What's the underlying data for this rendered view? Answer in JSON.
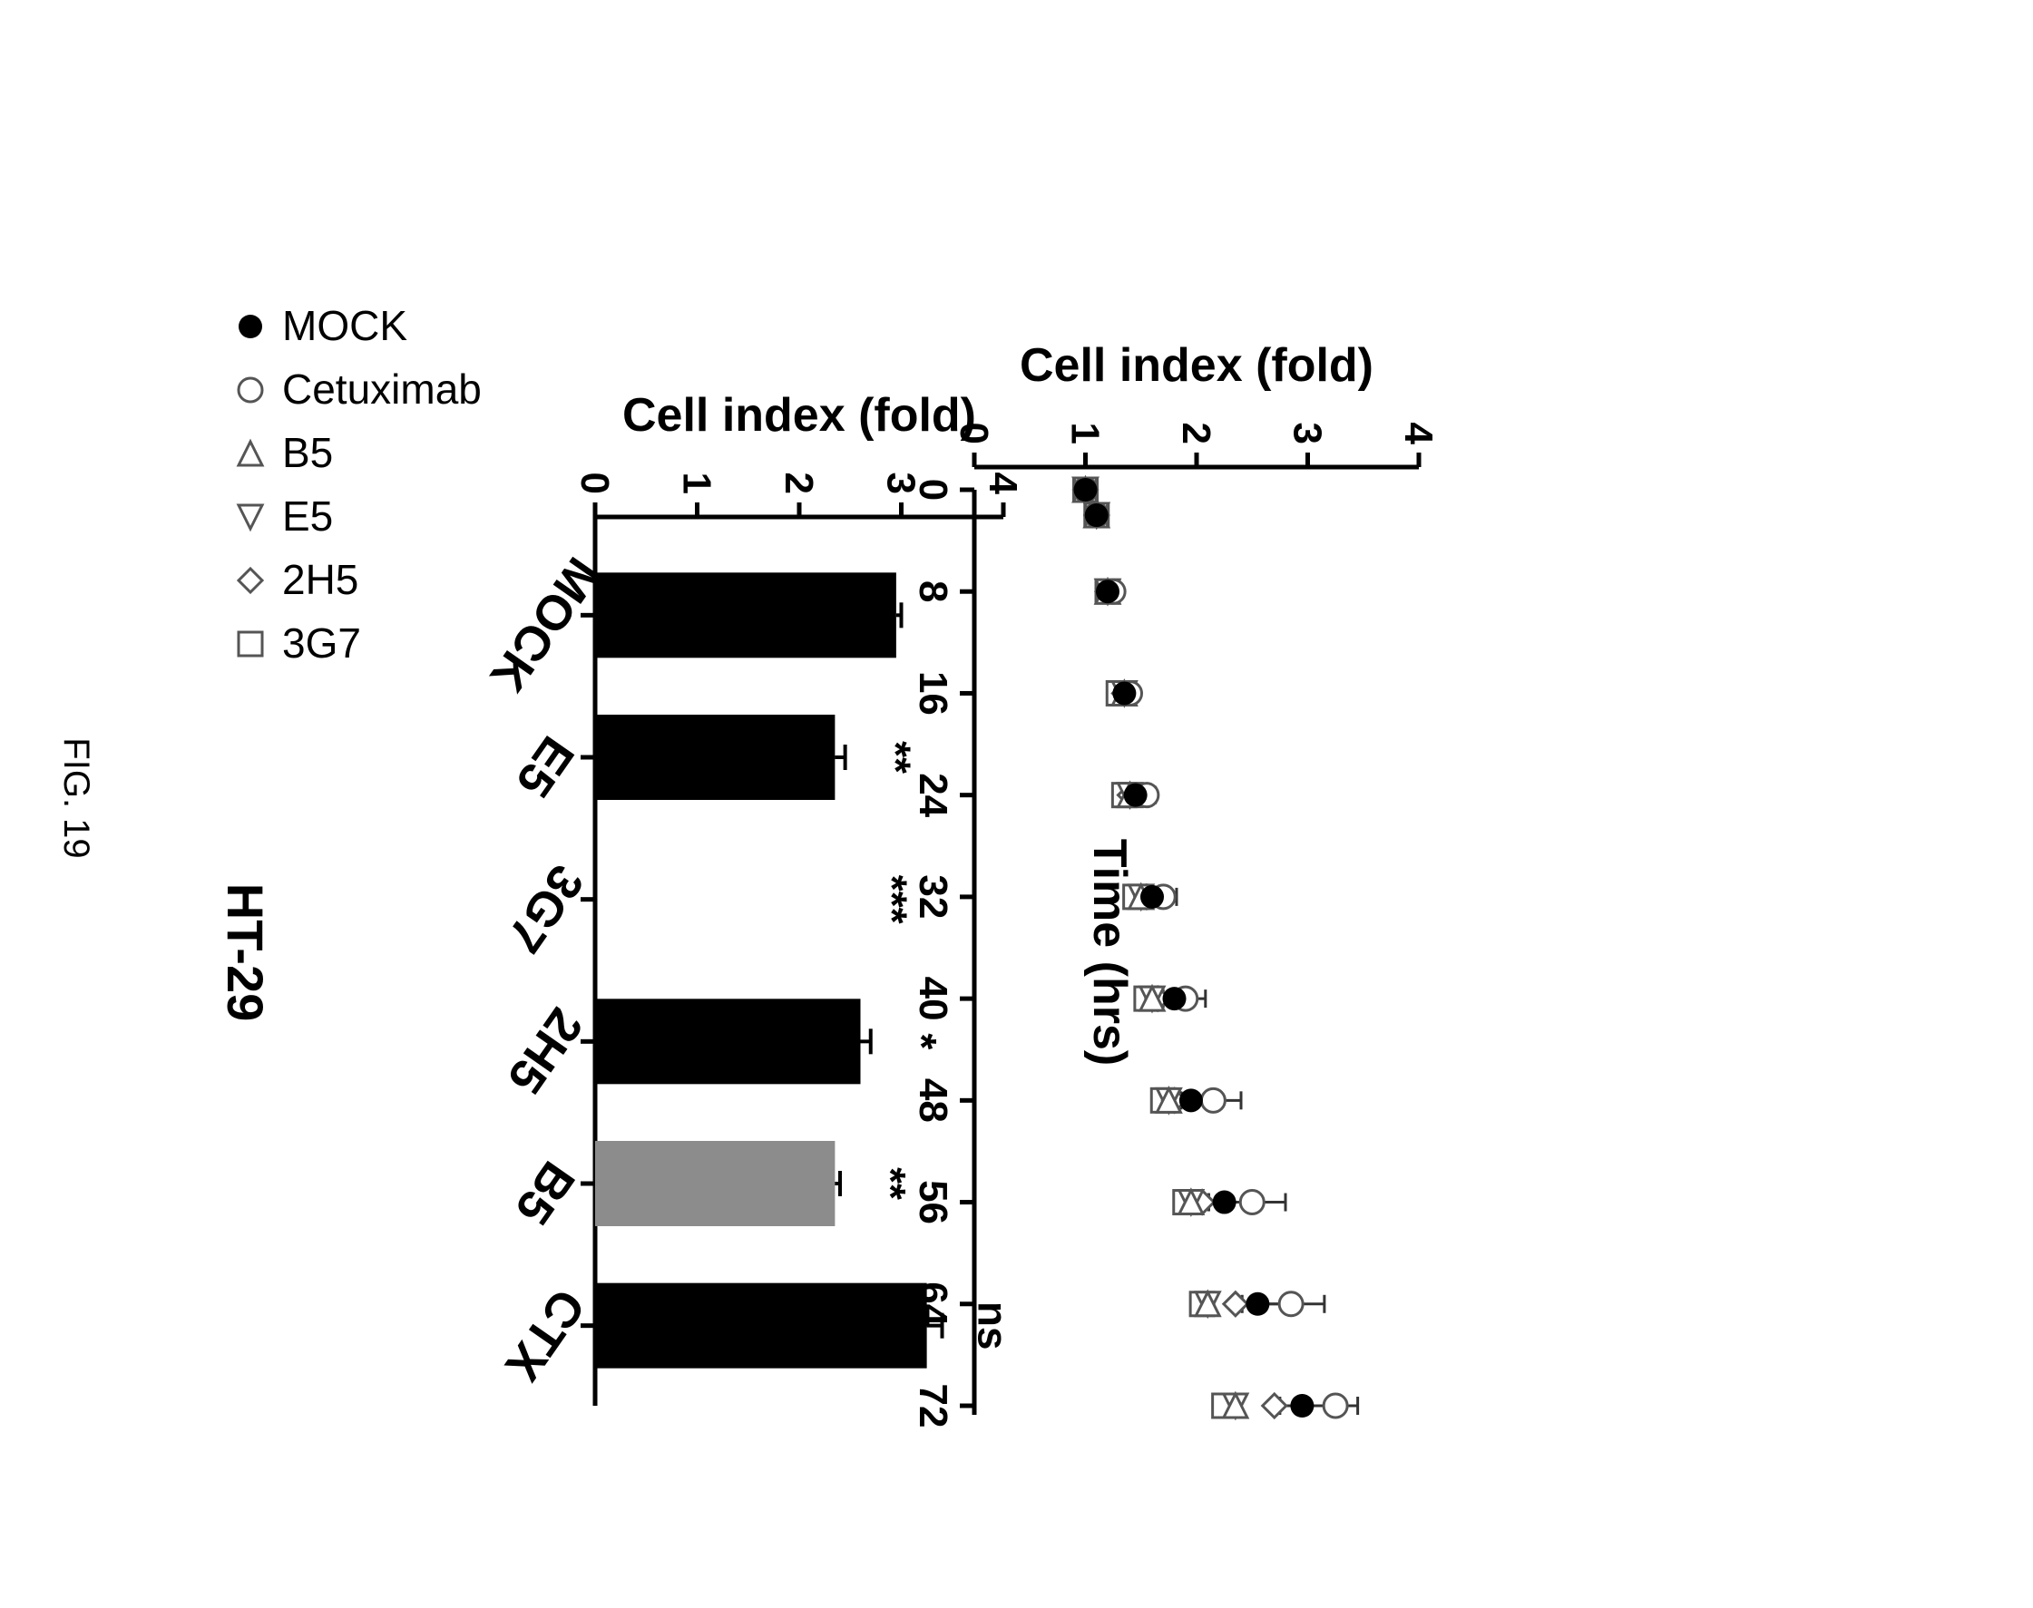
{
  "figure_label": "FIG. 19",
  "chart_data": [
    {
      "type": "scatter",
      "title": "HT-29",
      "xlabel": "Time (hrs)",
      "ylabel": "Cell index (fold)",
      "xlim": [
        0,
        72
      ],
      "ylim": [
        0,
        4
      ],
      "xticks": [
        "0",
        "8",
        "16",
        "24",
        "32",
        "40",
        "48",
        "56",
        "64",
        "72"
      ],
      "yticks": [
        "0",
        "1",
        "2",
        "3",
        "4"
      ],
      "grid": false,
      "legend_position": "right",
      "x": [
        0,
        2,
        8,
        16,
        24,
        32,
        40,
        48,
        56,
        64,
        72
      ],
      "series": [
        {
          "name": "MOCK",
          "marker": "filled-circle",
          "values": [
            1.0,
            1.1,
            1.2,
            1.35,
            1.45,
            1.6,
            1.8,
            1.95,
            2.25,
            2.55,
            2.95
          ],
          "error": [
            0,
            0,
            0.03,
            0.04,
            0.05,
            0.08,
            0.12,
            0.15,
            0.2,
            0.25,
            0.3
          ]
        },
        {
          "name": "Cetuximab",
          "marker": "open-circle",
          "values": [
            1.0,
            1.1,
            1.25,
            1.4,
            1.55,
            1.7,
            1.9,
            2.15,
            2.5,
            2.85,
            3.25
          ],
          "error": [
            0,
            0,
            0.03,
            0.05,
            0.08,
            0.12,
            0.18,
            0.25,
            0.3,
            0.3,
            0.2
          ]
        },
        {
          "name": "B5",
          "marker": "triangle-left",
          "values": [
            1.0,
            1.1,
            1.2,
            1.35,
            1.4,
            1.5,
            1.6,
            1.75,
            1.95,
            2.1,
            2.35
          ],
          "error": [
            0,
            0,
            0,
            0.03,
            0.03,
            0.04,
            0.05,
            0.06,
            0.06,
            0.05,
            0.05
          ]
        },
        {
          "name": "E5",
          "marker": "triangle-right",
          "values": [
            1.0,
            1.1,
            1.2,
            1.35,
            1.4,
            1.5,
            1.6,
            1.75,
            1.95,
            2.1,
            2.35
          ],
          "error": [
            0,
            0,
            0,
            0.03,
            0.03,
            0.04,
            0.05,
            0.06,
            0.06,
            0.05,
            0.05
          ]
        },
        {
          "name": "2H5",
          "marker": "open-diamond",
          "values": [
            1.0,
            1.1,
            1.2,
            1.35,
            1.4,
            1.55,
            1.65,
            1.8,
            2.05,
            2.35,
            2.7
          ],
          "error": [
            0,
            0,
            0,
            0.03,
            0.03,
            0.04,
            0.05,
            0.06,
            0.06,
            0.06,
            0.05
          ]
        },
        {
          "name": "3G7",
          "marker": "open-square",
          "values": [
            1.0,
            1.1,
            1.2,
            1.3,
            1.35,
            1.45,
            1.55,
            1.7,
            1.9,
            2.05,
            2.25
          ],
          "error": [
            0,
            0,
            0,
            0.03,
            0.03,
            0.04,
            0.05,
            0.06,
            0.06,
            0.05,
            0.05
          ]
        }
      ]
    },
    {
      "type": "bar",
      "xlabel": "",
      "ylabel": "Cell index (fold)",
      "ylim": [
        0,
        4
      ],
      "yticks": [
        "0",
        "1",
        "2",
        "3",
        "4"
      ],
      "grid": false,
      "categories": [
        "MOCK",
        "E5",
        "3G7",
        "2H5",
        "B5",
        "CTX"
      ],
      "values": [
        2.95,
        2.35,
        0,
        2.6,
        2.35,
        3.25
      ],
      "errors": [
        0.05,
        0.1,
        0,
        0.1,
        0.05,
        0.15
      ],
      "significance": [
        "",
        "**",
        "***",
        "*",
        "**",
        "ns"
      ],
      "colors": [
        "#000000",
        "#000000",
        "#000000",
        "#000000",
        "#8c8c8c",
        "#000000"
      ]
    }
  ]
}
